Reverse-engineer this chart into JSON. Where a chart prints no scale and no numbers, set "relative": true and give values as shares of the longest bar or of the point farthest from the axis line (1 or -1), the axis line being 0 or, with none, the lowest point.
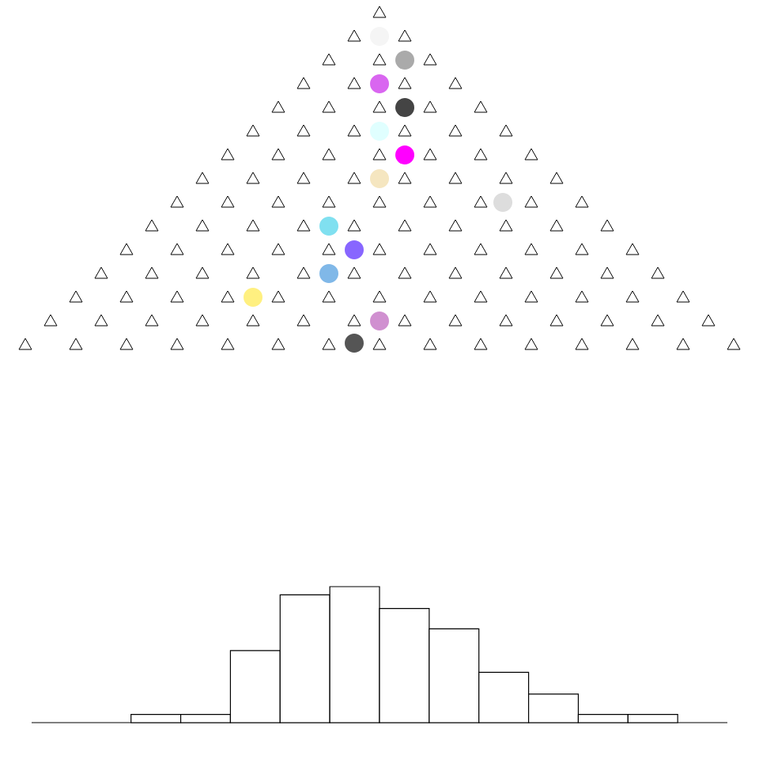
{
  "chart_data": {
    "type": "bar",
    "relative": true,
    "color": "#ffffff",
    "categories": [
      null,
      null,
      null,
      null,
      null,
      null,
      null,
      null,
      null,
      null,
      null
    ],
    "values": [
      0.06,
      0.06,
      0.53,
      0.94,
      1,
      0.84,
      0.69,
      0.37,
      0.21,
      0.06,
      0.06
    ]
  }
}
